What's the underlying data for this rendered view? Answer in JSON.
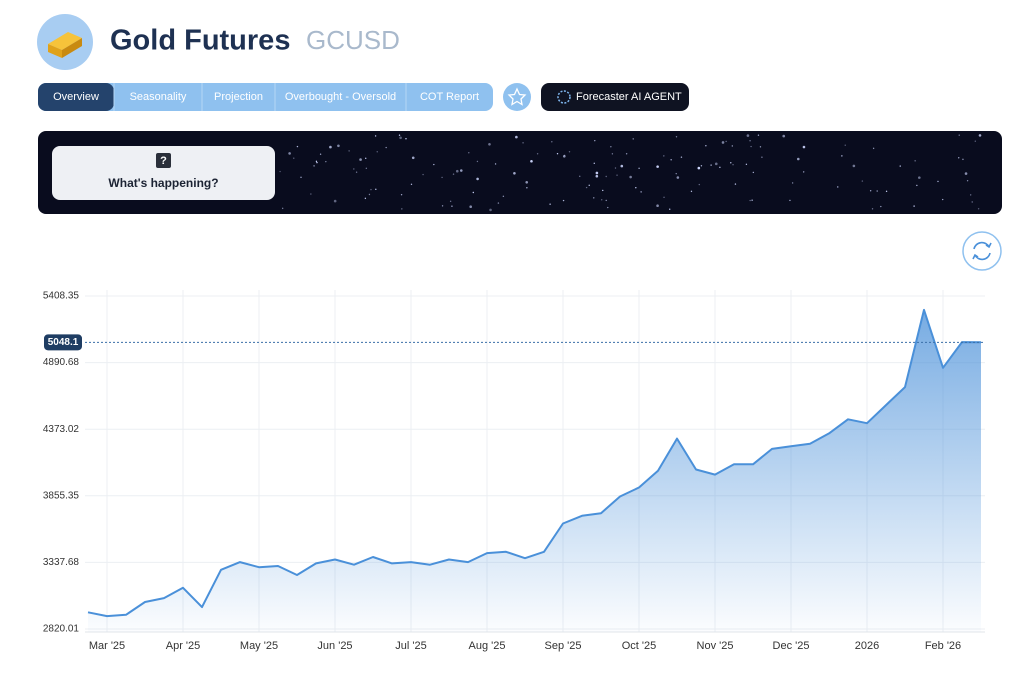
{
  "header": {
    "title": "Gold Futures",
    "ticker": "GCUSD"
  },
  "tabs": [
    "Overview",
    "Seasonality",
    "Projection",
    "Overbought - Oversold",
    "COT Report"
  ],
  "agent_button": "Forecaster AI AGENT",
  "banner": {
    "icon": "?",
    "text": "What's happening?"
  },
  "chart_data": {
    "type": "area",
    "categories": [
      null,
      "Mar '25",
      null,
      null,
      null,
      "Apr '25",
      null,
      null,
      null,
      "May '25",
      null,
      null,
      null,
      "Jun '25",
      null,
      null,
      null,
      "Jul '25",
      null,
      null,
      null,
      "Aug '25",
      null,
      null,
      null,
      "Sep '25",
      null,
      null,
      null,
      "Oct '25",
      null,
      null,
      null,
      "Nov '25",
      null,
      null,
      null,
      "Dec '25",
      null,
      null,
      null,
      "2026",
      null,
      null,
      null,
      "Feb '26",
      null,
      null
    ],
    "values": [
      2950,
      2920,
      2930,
      3030,
      3060,
      3140,
      2990,
      3280,
      3340,
      3300,
      3310,
      3240,
      3330,
      3360,
      3320,
      3380,
      3330,
      3340,
      3320,
      3360,
      3340,
      3410,
      3420,
      3370,
      3420,
      3640,
      3700,
      3720,
      3850,
      3920,
      4050,
      4300,
      4060,
      4020,
      4100,
      4100,
      4220,
      4240,
      4260,
      4340,
      4450,
      4420,
      4560,
      4700,
      5300,
      4850,
      5050,
      5048.1
    ],
    "last_value": 5048.1,
    "color": "#4a90d9",
    "ylim": [
      2820.01,
      5408.35
    ],
    "yticks": [
      2820.01,
      3337.68,
      3855.35,
      4373.02,
      4890.68,
      5408.35
    ],
    "grid": true
  }
}
